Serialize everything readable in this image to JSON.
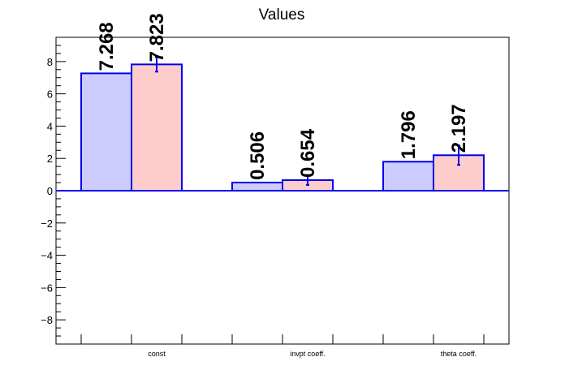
{
  "chart_data": {
    "type": "bar",
    "title": "Values",
    "xlabel": "",
    "ylabel": "",
    "categories": [
      "const",
      "invpt coeff.",
      "theta coeff."
    ],
    "ylim": [
      -9.5,
      9.5
    ],
    "yticks": [
      -8,
      -6,
      -4,
      -2,
      0,
      2,
      4,
      6,
      8
    ],
    "ytick_labels": [
      "−8",
      "−6",
      "−4",
      "−2",
      "0",
      "2",
      "4",
      "6",
      "8"
    ],
    "grid": false,
    "series": [
      {
        "values": [
          7.268,
          0.506,
          1.796
        ],
        "value_labels": [
          "7.268",
          "0.506",
          "1.796"
        ],
        "errors": [
          0,
          0,
          0
        ],
        "fill": "#ccccff",
        "stroke": "#0000ee"
      },
      {
        "values": [
          7.823,
          0.654,
          2.197
        ],
        "value_labels": [
          "7.823",
          "0.654",
          "2.197"
        ],
        "errors": [
          0.45,
          0.3,
          0.6
        ],
        "fill": "#ffcccc",
        "stroke": "#0000ee"
      }
    ]
  }
}
